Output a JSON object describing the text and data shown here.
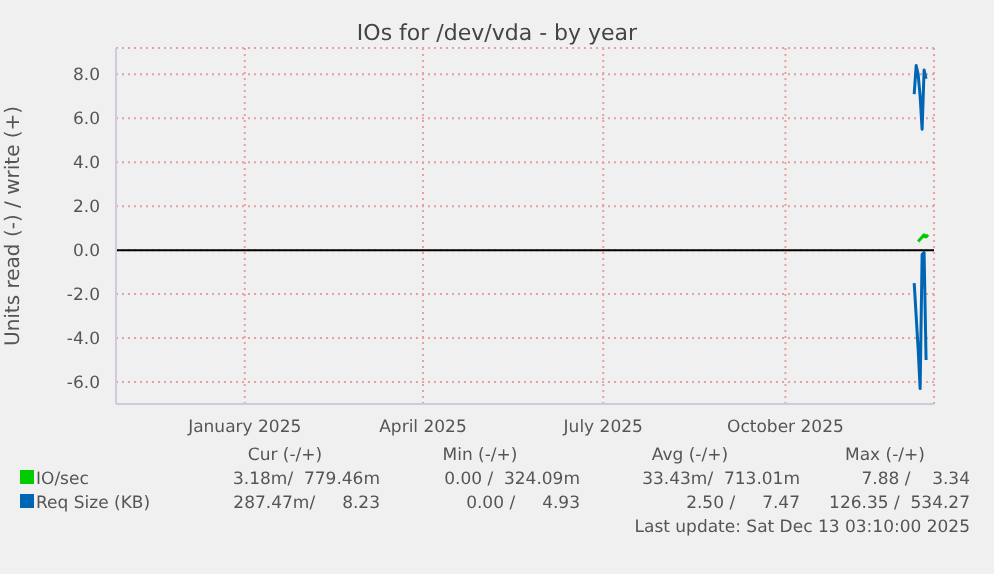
{
  "chart_data": {
    "type": "line",
    "title": "IOs for /dev/vda - by year",
    "ylabel": "Units read (-) / write (+)",
    "xlim": [
      "2024-10-28",
      "2025-12-15"
    ],
    "xticks": [
      {
        "value": "2025-01-01",
        "label": "January 2025"
      },
      {
        "value": "2025-04-01",
        "label": "April 2025"
      },
      {
        "value": "2025-07-01",
        "label": "July 2025"
      },
      {
        "value": "2025-10-01",
        "label": "October 2025"
      }
    ],
    "ylim": [
      -7,
      9.2
    ],
    "yticks": [
      {
        "value": -6,
        "label": "-6.0"
      },
      {
        "value": -4,
        "label": "-4.0"
      },
      {
        "value": -2,
        "label": "-2.0"
      },
      {
        "value": 0,
        "label": "0.0"
      },
      {
        "value": 2,
        "label": "2.0"
      },
      {
        "value": 4,
        "label": "4.0"
      },
      {
        "value": 6,
        "label": "6.0"
      },
      {
        "value": 8,
        "label": "8.0"
      }
    ],
    "grid": true,
    "legend": "bottom left",
    "marker": "none",
    "line_style": "solid",
    "ref_lines": [
      {
        "axis": "y",
        "value": 0,
        "color": "#000000"
      }
    ],
    "series": [
      {
        "name": "IO/sec",
        "color": "#00cc00",
        "x": [
          "2025-12-07",
          "2025-12-08",
          "2025-12-09",
          "2025-12-10",
          "2025-12-11",
          "2025-12-12"
        ],
        "values": [
          0.4,
          0.5,
          0.6,
          0.7,
          0.6,
          0.7
        ]
      },
      {
        "name": "Req Size (KB)",
        "color": "#0066b3",
        "x": [
          "2025-12-05",
          "2025-12-06",
          "2025-12-07",
          "2025-12-08",
          "2025-12-09",
          "2025-12-10",
          "2025-12-11"
        ],
        "values": [
          7.1,
          8.4,
          8.0,
          7.0,
          5.5,
          8.2,
          7.8
        ]
      },
      {
        "color": "#0066b3",
        "x": [
          "2025-12-05",
          "2025-12-06",
          "2025-12-07",
          "2025-12-08",
          "2025-12-09",
          "2025-12-10",
          "2025-12-11"
        ],
        "values": [
          -1.5,
          -3,
          -4.5,
          -6.3,
          -0.2,
          -0.1,
          -5.0
        ]
      }
    ],
    "annotations": [
      "Cur (-/+)",
      "Min (-/+)",
      "Avg (-/+)",
      "Max (-/+)",
      "3.18m/  779.46m",
      "0.00 /  324.09m",
      "33.43m/  713.01m",
      "7.88 /    3.34",
      "287.47m/     8.23",
      "0.00 /     4.93",
      "2.50 /     7.47",
      "126.35 /  534.27",
      "Last update: Sat Dec 13 03:10:00 2025"
    ]
  }
}
